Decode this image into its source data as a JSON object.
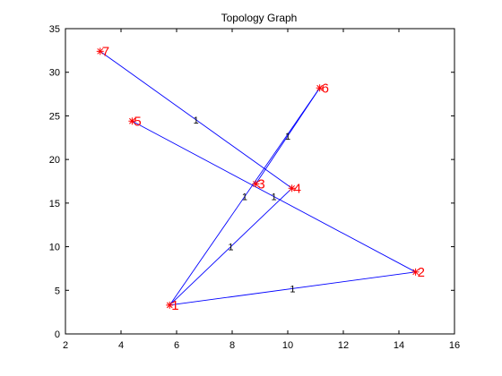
{
  "chart_data": {
    "type": "scatter",
    "title": "Topology Graph",
    "xlabel": "",
    "ylabel": "",
    "xlim": [
      2,
      16
    ],
    "ylim": [
      0,
      35
    ],
    "xticks": [
      2,
      4,
      6,
      8,
      10,
      12,
      14,
      16
    ],
    "yticks": [
      0,
      5,
      10,
      15,
      20,
      25,
      30,
      35
    ],
    "grid": false,
    "nodes": [
      {
        "label": "1",
        "x": 5.75,
        "y": 3.3
      },
      {
        "label": "2",
        "x": 14.6,
        "y": 7.1
      },
      {
        "label": "3",
        "x": 8.85,
        "y": 17.2
      },
      {
        "label": "4",
        "x": 10.15,
        "y": 16.7
      },
      {
        "label": "5",
        "x": 4.4,
        "y": 24.4
      },
      {
        "label": "6",
        "x": 11.15,
        "y": 28.2
      },
      {
        "label": "7",
        "x": 3.25,
        "y": 32.4
      }
    ],
    "edges": [
      {
        "from": "1",
        "to": "2",
        "weight": "1"
      },
      {
        "from": "1",
        "to": "6",
        "weight": "1"
      },
      {
        "from": "1",
        "to": "4",
        "weight": "1"
      },
      {
        "from": "7",
        "to": "4",
        "weight": "1"
      },
      {
        "from": "5",
        "to": "2",
        "weight": "1"
      },
      {
        "from": "6",
        "to": "3",
        "weight": "1"
      }
    ],
    "colors": {
      "edge": "#0000ff",
      "node": "#ff0000",
      "label": "#ff0000"
    }
  }
}
